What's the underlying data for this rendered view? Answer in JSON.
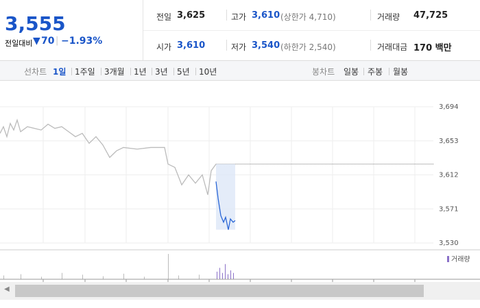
{
  "header": {
    "price": "3,555",
    "change_label": "전일대비",
    "change": "70",
    "change_pct": "−1.93%",
    "stats": [
      {
        "label": "전일",
        "value": {
          "value": 3625,
          "label": "3,625"
        }
      },
      {
        "label": "고가",
        "value": "3,610",
        "note": "(상한가 4,710)"
      },
      {
        "label": "거래량",
        "value": "47,725"
      },
      {
        "label": "시가",
        "value": "3,610"
      },
      {
        "label": "저가",
        "value": "3,540",
        "note": "(하한가 2,540)"
      },
      {
        "label": "거래대금",
        "value": "170 백만"
      }
    ]
  },
  "toolbar": {
    "line_label": "선차트",
    "line_periods": [
      "1일",
      "1주일",
      "3개월",
      "1년",
      "3년",
      "5년",
      "10년"
    ],
    "candle_label": "봉차트",
    "candle_periods": [
      "일봉",
      "주봉",
      "월봉"
    ]
  },
  "chart_data": {
    "type": "line",
    "ylim": [
      3530,
      3694
    ],
    "yticks": [
      {
        "value": 3530,
        "label": "3,530"
      },
      {
        "value": 3571,
        "label": "3,571"
      },
      {
        "value": 3612,
        "label": "3,612"
      },
      {
        "value": 3653,
        "label": "3,653"
      },
      {
        "value": 3694,
        "label": "3,694"
      }
    ],
    "xlim": [
      0,
      632
    ],
    "xticks": [
      63,
      124,
      184,
      245,
      305,
      365,
      425,
      485,
      545,
      605
    ],
    "grid": true,
    "series": [
      {
        "color": "#bbbbbb",
        "x": [
          0,
          5,
          10,
          15,
          20,
          25,
          30,
          40,
          50,
          60,
          70,
          80,
          90,
          100,
          110,
          120,
          130,
          140,
          150,
          160,
          170,
          180,
          200,
          220,
          240,
          245,
          255,
          265,
          275,
          285,
          295,
          303,
          308,
          315
        ],
        "values": [
          3662,
          3670,
          3658,
          3674,
          3666,
          3678,
          3664,
          3670,
          3668,
          3666,
          3673,
          3668,
          3670,
          3664,
          3658,
          3662,
          3650,
          3658,
          3648,
          3633,
          3641,
          3645,
          3643,
          3645,
          3645,
          3625,
          3621,
          3600,
          3612,
          3602,
          3612,
          3588,
          3617,
          3625
        ]
      },
      {
        "color": "#2a66d6",
        "x": [
          315,
          318,
          322,
          326,
          329,
          333,
          336,
          340,
          343
        ],
        "values": [
          3604,
          3584,
          3563,
          3555,
          3561,
          3546,
          3559,
          3555,
          3557
        ]
      }
    ],
    "volume": {
      "name": "거래량",
      "color": "#8a70c8",
      "ylim": [
        0,
        100
      ],
      "x": [
        5,
        30,
        60,
        90,
        120,
        150,
        180,
        210,
        245,
        260,
        290,
        316,
        320,
        324,
        328,
        332,
        336,
        340
      ],
      "values": [
        15,
        20,
        10,
        25,
        18,
        12,
        22,
        10,
        100,
        15,
        18,
        30,
        45,
        25,
        60,
        20,
        35,
        25
      ]
    }
  }
}
